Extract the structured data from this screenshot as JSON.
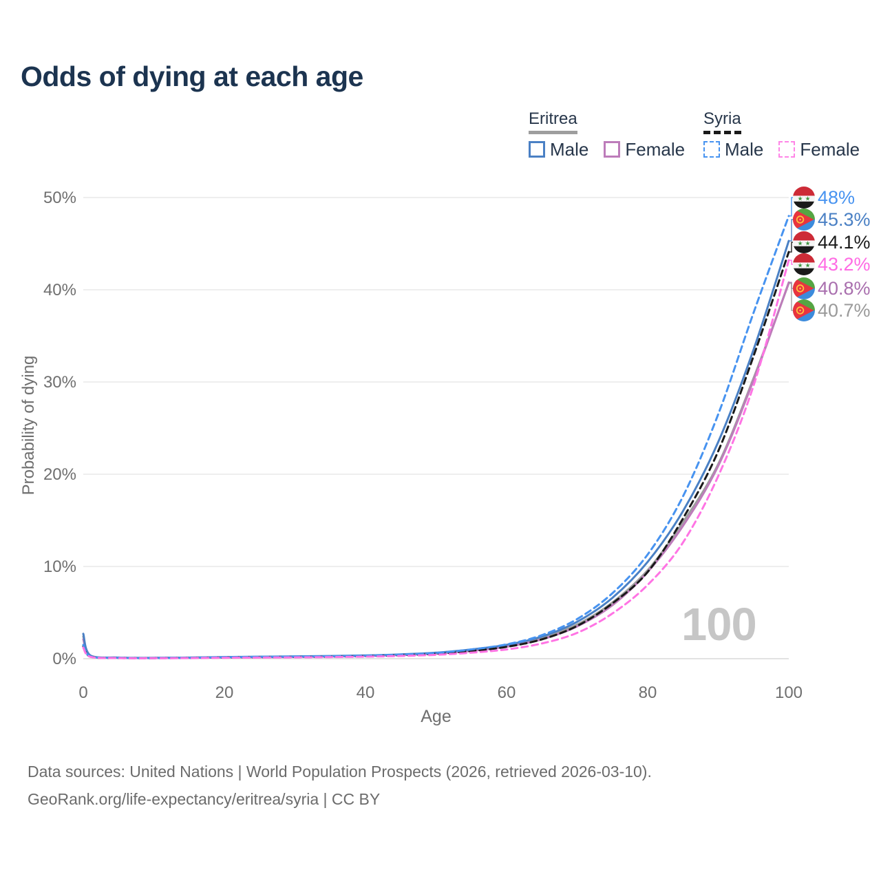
{
  "title": "Odds of dying at each age",
  "legend": {
    "groups": [
      {
        "name": "Eritrea",
        "line_style": "solid",
        "underline_color": "#9e9e9e",
        "items": [
          {
            "label": "Male",
            "color": "#4a80c4"
          },
          {
            "label": "Female",
            "color": "#bd7cba"
          }
        ]
      },
      {
        "name": "Syria",
        "line_style": "dashed",
        "underline_color": "#1a1a1a",
        "items": [
          {
            "label": "Male",
            "color": "#4793f0"
          },
          {
            "label": "Female",
            "color": "#ff85e7"
          }
        ]
      }
    ]
  },
  "axes": {
    "x_label": "Age",
    "y_label": "Probability of dying",
    "x_ticks": [
      "0",
      "20",
      "40",
      "60",
      "80",
      "100"
    ],
    "y_ticks": [
      "0%",
      "10%",
      "20%",
      "30%",
      "40%",
      "50%"
    ],
    "grid": true
  },
  "chart_data": {
    "type": "line",
    "title": "Odds of dying at each age",
    "xlabel": "Age",
    "ylabel": "Probability of dying",
    "xlim": [
      0,
      100
    ],
    "ylim_percent": [
      0,
      50
    ],
    "x_ages": [
      0,
      1,
      5,
      10,
      15,
      20,
      25,
      30,
      35,
      40,
      45,
      50,
      55,
      60,
      65,
      70,
      75,
      80,
      85,
      90,
      95,
      100
    ],
    "series": [
      {
        "name": "Eritrea Both",
        "country": "Eritrea",
        "sex": "both",
        "color": "#9e9e9e",
        "dash": "solid",
        "values": [
          2.4,
          0.33,
          0.11,
          0.085,
          0.11,
          0.155,
          0.19,
          0.22,
          0.26,
          0.32,
          0.44,
          0.6,
          0.92,
          1.4,
          2.25,
          3.7,
          6.1,
          9.6,
          14.8,
          21.1,
          30.4,
          40.7
        ],
        "end_label": "40.7%"
      },
      {
        "name": "Eritrea Female",
        "country": "Eritrea",
        "sex": "female",
        "color": "#bd7cba",
        "dash": "solid",
        "values": [
          2.1,
          0.3,
          0.1,
          0.08,
          0.1,
          0.13,
          0.16,
          0.19,
          0.23,
          0.29,
          0.4,
          0.55,
          0.85,
          1.3,
          2.1,
          3.5,
          5.8,
          9.4,
          14.4,
          20.9,
          30.2,
          40.8
        ],
        "end_label": "40.8%"
      },
      {
        "name": "Eritrea Male",
        "country": "Eritrea",
        "sex": "male",
        "color": "#4a80c4",
        "dash": "solid",
        "values": [
          2.7,
          0.35,
          0.12,
          0.09,
          0.12,
          0.18,
          0.22,
          0.25,
          0.29,
          0.35,
          0.47,
          0.65,
          1.0,
          1.5,
          2.4,
          4.0,
          6.6,
          10.5,
          16.0,
          23.5,
          33.5,
          45.3
        ],
        "end_label": "45.3%"
      },
      {
        "name": "Syria Both",
        "country": "Syria",
        "sex": "both",
        "color": "#1a1a1a",
        "dash": "dashed",
        "values": [
          1.35,
          0.23,
          0.08,
          0.06,
          0.085,
          0.13,
          0.16,
          0.185,
          0.22,
          0.28,
          0.38,
          0.53,
          0.83,
          1.28,
          2.1,
          3.55,
          6.0,
          9.4,
          15.2,
          22.5,
          32.8,
          44.1
        ],
        "end_label": "44.1%"
      },
      {
        "name": "Syria Male",
        "country": "Syria",
        "sex": "male",
        "color": "#4793f0",
        "dash": "dashed",
        "values": [
          1.5,
          0.25,
          0.09,
          0.07,
          0.1,
          0.16,
          0.2,
          0.23,
          0.27,
          0.33,
          0.45,
          0.63,
          1.0,
          1.55,
          2.55,
          4.3,
          7.1,
          11.3,
          17.6,
          26.5,
          37.5,
          48.0
        ],
        "end_label": "48%"
      },
      {
        "name": "Syria Female",
        "country": "Syria",
        "sex": "female",
        "color": "#ff74e4",
        "dash": "dashed",
        "values": [
          1.2,
          0.2,
          0.07,
          0.055,
          0.07,
          0.1,
          0.12,
          0.14,
          0.17,
          0.22,
          0.3,
          0.42,
          0.65,
          1.0,
          1.65,
          2.8,
          4.9,
          8.0,
          12.6,
          19.8,
          29.6,
          43.2
        ],
        "end_label": "43.2%"
      }
    ]
  },
  "end_labels": [
    {
      "flag": "syria",
      "text": "48%",
      "color": "#4793f0",
      "series": "Syria Male",
      "value": 48.0
    },
    {
      "flag": "eritrea",
      "text": "45.3%",
      "color": "#4a80c4",
      "series": "Eritrea Male",
      "value": 45.3
    },
    {
      "flag": "syria",
      "text": "44.1%",
      "color": "#1b1b1b",
      "series": "Syria Both",
      "value": 44.1
    },
    {
      "flag": "syria",
      "text": "43.2%",
      "color": "#ff6be4",
      "series": "Syria Female",
      "value": 43.2
    },
    {
      "flag": "eritrea",
      "text": "40.8%",
      "color": "#a96fae",
      "series": "Eritrea Female",
      "value": 40.8
    },
    {
      "flag": "eritrea",
      "text": "40.7%",
      "color": "#9a9a9a",
      "series": "Eritrea Both",
      "value": 40.7
    }
  ],
  "watermark": "100",
  "footer": {
    "line1": "Data sources: United Nations | World Population Prospects (2026, retrieved 2026-03-10).",
    "line2": "GeoRank.org/life-expectancy/eritrea/syria | CC BY"
  }
}
